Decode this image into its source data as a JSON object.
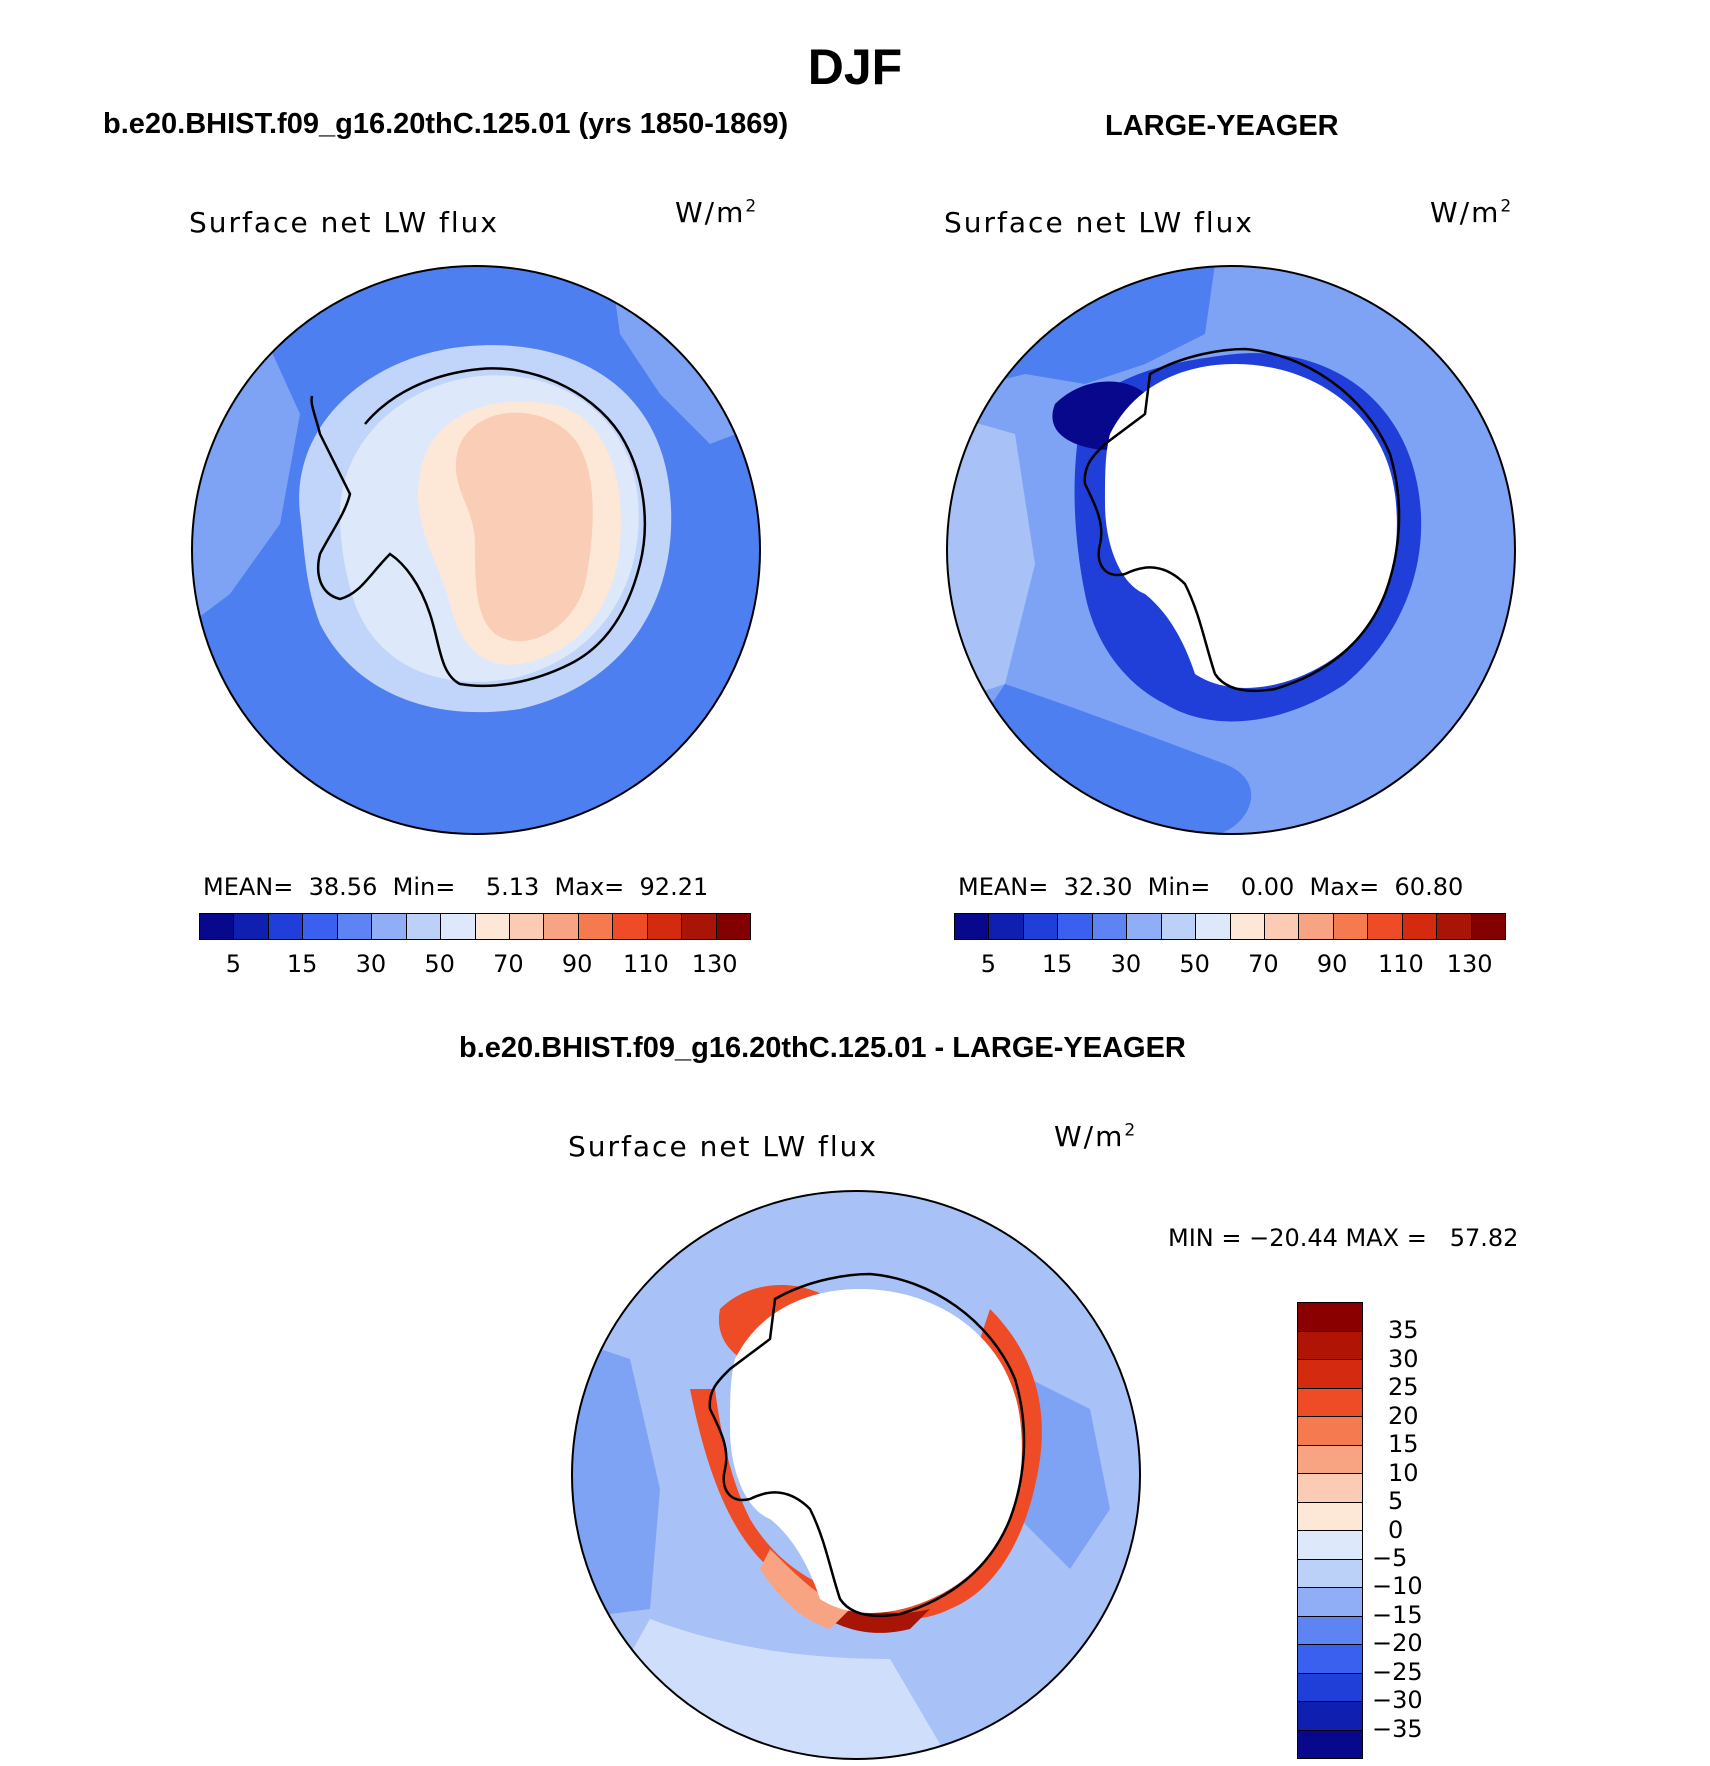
{
  "figure": {
    "title": "DJF"
  },
  "panels": [
    {
      "title": "b.e20.BHIST.f09_g16.20thC.125.01 (yrs 1850-1869)",
      "variable": "Surface net LW flux",
      "units_base": "W/m",
      "units_exp": "2",
      "stats": {
        "mean_label": "MEAN=",
        "mean": "38.56",
        "min_label": "Min=",
        "min": "5.13",
        "max_label": "Max=",
        "max": "92.21"
      },
      "colorbar": {
        "colors": [
          "#08088c",
          "#0f1fb0",
          "#1f3fd8",
          "#3a60ef",
          "#5d84f2",
          "#8faef5",
          "#bcd1f8",
          "#dde9fb",
          "#fde7d6",
          "#fbcbb3",
          "#f8a483",
          "#f57a50",
          "#ee4b27",
          "#d42a10",
          "#a81406",
          "#820000"
        ],
        "tick_labels": [
          "5",
          "15",
          "30",
          "50",
          "70",
          "90",
          "110",
          "130"
        ]
      },
      "map_colors": {
        "ocean": "#4e7ff0",
        "ocean_light": "#7ea2f4",
        "coast": "#c1d4f9",
        "ice": "#dde9fb",
        "inland": "#fde7d6",
        "plateau": "#f9cdb6"
      }
    },
    {
      "title": "LARGE-YEAGER",
      "variable": "Surface net LW flux",
      "units_base": "W/m",
      "units_exp": "2",
      "stats": {
        "mean_label": "MEAN=",
        "mean": "32.30",
        "min_label": "Min=",
        "min": "0.00",
        "max_label": "Max=",
        "max": "60.80"
      },
      "colorbar": {
        "colors": [
          "#08088c",
          "#0f1fb0",
          "#1f3fd8",
          "#3a60ef",
          "#5d84f2",
          "#8faef5",
          "#bcd1f8",
          "#dde9fb",
          "#fde7d6",
          "#fbcbb3",
          "#f8a483",
          "#f57a50",
          "#ee4b27",
          "#d42a10",
          "#a81406",
          "#820000"
        ],
        "tick_labels": [
          "5",
          "15",
          "30",
          "50",
          "70",
          "90",
          "110",
          "130"
        ]
      },
      "map_colors": {
        "ocean": "#7ea2f4",
        "ocean_mid": "#4e7ff0",
        "ocean_light": "#a8c2f7",
        "coast": "#1f3fd8",
        "coast_dark": "#08088c"
      }
    },
    {
      "title": "b.e20.BHIST.f09_g16.20thC.125.01 - LARGE-YEAGER",
      "variable": "Surface net LW flux",
      "units_base": "W/m",
      "units_exp": "2",
      "stats_line": "MIN = −20.44 MAX =   57.82",
      "colorbar": {
        "colors": [
          "#8a0000",
          "#b01404",
          "#d42a10",
          "#ee4b27",
          "#f57a50",
          "#f8a483",
          "#fbcbb3",
          "#fde7d6",
          "#dde9fb",
          "#bcd1f8",
          "#8faef5",
          "#5d84f2",
          "#3a60ef",
          "#1f3fd8",
          "#0f1fb0",
          "#08088c"
        ],
        "tick_labels": [
          "35",
          "30",
          "25",
          "20",
          "15",
          "10",
          "5",
          "0",
          "−5",
          "−10",
          "−15",
          "−20",
          "−25",
          "−30",
          "−35"
        ]
      },
      "map_colors": {
        "ocean": "#a8c2f7",
        "ocean_mid": "#7ea2f4",
        "ocean_light": "#cfdefa",
        "coast_red": "#ee4b27",
        "coast_dark": "#a81406",
        "coast_pale": "#f8a483"
      }
    }
  ]
}
